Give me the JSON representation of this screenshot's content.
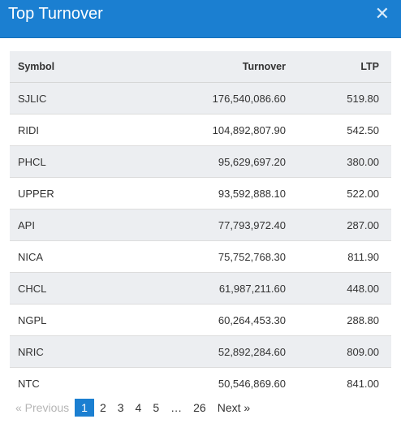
{
  "modal": {
    "title": "Top Turnover",
    "close": "✕"
  },
  "table": {
    "headers": {
      "symbol": "Symbol",
      "turnover": "Turnover",
      "ltp": "LTP"
    },
    "rows": [
      {
        "symbol": "SJLIC",
        "turnover": "176,540,086.60",
        "ltp": "519.80"
      },
      {
        "symbol": "RIDI",
        "turnover": "104,892,807.90",
        "ltp": "542.50"
      },
      {
        "symbol": "PHCL",
        "turnover": "95,629,697.20",
        "ltp": "380.00"
      },
      {
        "symbol": "UPPER",
        "turnover": "93,592,888.10",
        "ltp": "522.00"
      },
      {
        "symbol": "API",
        "turnover": "77,793,972.40",
        "ltp": "287.00"
      },
      {
        "symbol": "NICA",
        "turnover": "75,752,768.30",
        "ltp": "811.90"
      },
      {
        "symbol": "CHCL",
        "turnover": "61,987,211.60",
        "ltp": "448.00"
      },
      {
        "symbol": "NGPL",
        "turnover": "60,264,453.30",
        "ltp": "288.80"
      },
      {
        "symbol": "NRIC",
        "turnover": "52,892,284.60",
        "ltp": "809.00"
      },
      {
        "symbol": "NTC",
        "turnover": "50,546,869.60",
        "ltp": "841.00"
      }
    ]
  },
  "pagination": {
    "previous": "« Previous",
    "next": "Next »",
    "pages": [
      "1",
      "2",
      "3",
      "4",
      "5",
      "…",
      "26"
    ],
    "current": "1"
  }
}
